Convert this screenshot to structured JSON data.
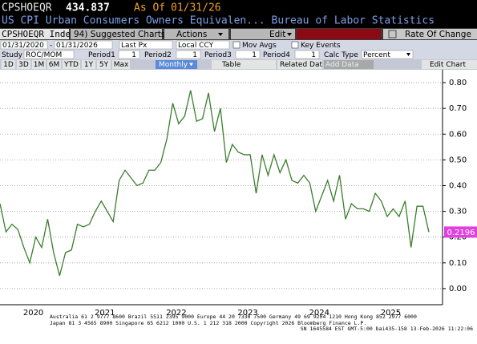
{
  "header": {
    "ticker": "CPSHOEQR",
    "price": "434.837",
    "as_of_label": "As Of",
    "as_of_date": "01/31/26",
    "description": "US CPI Urban Consumers Owners Equivalen... Bureau of Labor Statistics"
  },
  "toolbar": {
    "security": "CPSHOEQR Index",
    "suggested": "94) Suggested Charts",
    "actions": "Actions",
    "edit": "Edit",
    "rate_of_change": "Rate Of Change"
  },
  "settings": {
    "start_date": "01/31/2020",
    "separator": "-",
    "end_date": "01/31/2026",
    "price_field": "Last Px",
    "currency": "Local CCY",
    "mov_avgs": "Mov Avgs",
    "key_events": "Key Events"
  },
  "study": {
    "label": "Study",
    "value": "ROC/MOM",
    "periods": [
      {
        "label": "Period1",
        "value": "1"
      },
      {
        "label": "Period2",
        "value": "1"
      },
      {
        "label": "Period3",
        "value": "1"
      },
      {
        "label": "Period4",
        "value": "1"
      }
    ],
    "calc_type_label": "Calc Type",
    "calc_type": "Percent"
  },
  "ranges": {
    "buttons": [
      "1D",
      "3D",
      "1M",
      "6M",
      "YTD",
      "1Y",
      "5Y",
      "Max"
    ],
    "frequency": "Monthly",
    "table": "Table",
    "related": "Related Dat",
    "add_data": "Add Data",
    "edit_chart": "Edit Chart"
  },
  "footer": {
    "line1": "Australia 61 2 9777 8600 Brazil 5511 2395 9000 Europe 44 20 7330 7500 Germany 49 69 9204 1210 Hong Kong 852 2977 6000",
    "line2": "Japan 81 3 4565 8900      Singapore 65 6212 1000      U.S. 1 212 318 2000      Copyright 2026 Bloomberg Finance L.P.",
    "line3": "SN 1645584 EST  GMT-5:00 bai435-158 13-Feb-2026 11:22:06"
  },
  "chart_data": {
    "type": "line",
    "color": "#3a7d2c",
    "categories": [
      null,
      null,
      null,
      null,
      null,
      null,
      "2020",
      null,
      null,
      null,
      null,
      null,
      null,
      null,
      null,
      null,
      null,
      null,
      "2021",
      null,
      null,
      null,
      null,
      null,
      null,
      null,
      null,
      null,
      null,
      null,
      "2022",
      null,
      null,
      null,
      null,
      null,
      null,
      null,
      null,
      null,
      null,
      null,
      "2023",
      null,
      null,
      null,
      null,
      null,
      null,
      null,
      null,
      null,
      null,
      null,
      "2024",
      null,
      null,
      null,
      null,
      null,
      null,
      null,
      null,
      null,
      null,
      null,
      "2025",
      null,
      null,
      null,
      null,
      null,
      null
    ],
    "values": [
      0.33,
      0.22,
      0.25,
      0.23,
      0.16,
      0.1,
      0.2,
      0.16,
      0.27,
      0.14,
      0.05,
      0.14,
      0.15,
      0.25,
      0.24,
      0.25,
      0.3,
      0.34,
      0.3,
      0.26,
      0.42,
      0.46,
      0.43,
      0.4,
      0.41,
      0.46,
      0.46,
      0.49,
      0.58,
      0.72,
      0.64,
      0.67,
      0.77,
      0.65,
      0.66,
      0.76,
      0.61,
      0.7,
      0.49,
      0.56,
      0.53,
      0.52,
      0.52,
      0.37,
      0.52,
      0.44,
      0.52,
      0.45,
      0.5,
      0.42,
      0.41,
      0.44,
      0.41,
      0.3,
      0.36,
      0.42,
      0.34,
      0.44,
      0.27,
      0.33,
      0.31,
      0.31,
      0.3,
      0.37,
      0.34,
      0.28,
      0.31,
      0.28,
      0.34,
      0.16,
      0.32,
      0.32,
      0.2196
    ],
    "ylim": [
      -0.0625,
      0.85
    ],
    "yticks": [
      {
        "value": 0,
        "label": "0.00"
      },
      {
        "value": 0.1,
        "label": "0.10"
      },
      {
        "value": 0.2,
        "label": "0.20"
      },
      {
        "value": 0.3,
        "label": "0.30"
      },
      {
        "value": 0.4,
        "label": "0.40"
      },
      {
        "value": 0.5,
        "label": "0.50"
      },
      {
        "value": 0.6,
        "label": "0.60"
      },
      {
        "value": 0.7,
        "label": "0.70"
      },
      {
        "value": 0.8,
        "label": "0.80"
      }
    ],
    "grid": true,
    "last_value_color": "#e040e0"
  }
}
